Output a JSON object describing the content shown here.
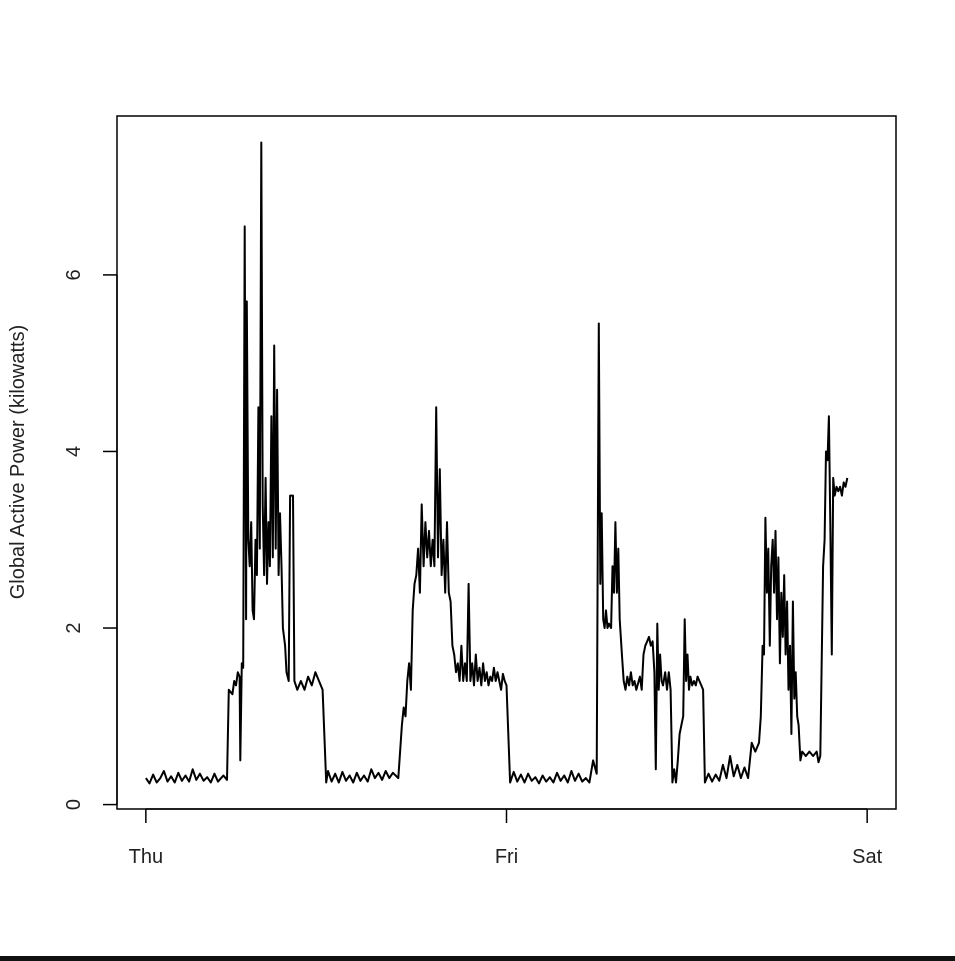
{
  "chart_data": {
    "type": "line",
    "title": "",
    "xlabel": "",
    "ylabel": "Global Active Power (kilowatts)",
    "x_ticks": [
      {
        "label": "Thu",
        "value": 0
      },
      {
        "label": "Fri",
        "value": 1
      },
      {
        "label": "Sat",
        "value": 2
      }
    ],
    "y_ticks": [
      {
        "label": "0",
        "value": 0
      },
      {
        "label": "2",
        "value": 2
      },
      {
        "label": "4",
        "value": 4
      },
      {
        "label": "6",
        "value": 6
      }
    ],
    "xlim": [
      -0.08,
      2.08
    ],
    "ylim": [
      -0.05,
      7.8
    ],
    "grid": false,
    "legend": "none",
    "line_color": "#000000",
    "series": [
      {
        "values": [
          [
            0.0,
            0.3
          ],
          [
            0.01,
            0.24
          ],
          [
            0.02,
            0.34
          ],
          [
            0.03,
            0.25
          ],
          [
            0.04,
            0.3
          ],
          [
            0.05,
            0.38
          ],
          [
            0.06,
            0.26
          ],
          [
            0.07,
            0.32
          ],
          [
            0.08,
            0.25
          ],
          [
            0.09,
            0.36
          ],
          [
            0.1,
            0.27
          ],
          [
            0.11,
            0.33
          ],
          [
            0.12,
            0.26
          ],
          [
            0.13,
            0.4
          ],
          [
            0.14,
            0.28
          ],
          [
            0.15,
            0.35
          ],
          [
            0.16,
            0.27
          ],
          [
            0.17,
            0.31
          ],
          [
            0.18,
            0.25
          ],
          [
            0.19,
            0.35
          ],
          [
            0.2,
            0.26
          ],
          [
            0.215,
            0.33
          ],
          [
            0.225,
            0.28
          ],
          [
            0.23,
            1.3
          ],
          [
            0.24,
            1.25
          ],
          [
            0.245,
            1.4
          ],
          [
            0.25,
            1.35
          ],
          [
            0.255,
            1.5
          ],
          [
            0.26,
            1.45
          ],
          [
            0.262,
            0.5
          ],
          [
            0.266,
            1.6
          ],
          [
            0.27,
            1.55
          ],
          [
            0.274,
            6.55
          ],
          [
            0.278,
            2.1
          ],
          [
            0.28,
            5.7
          ],
          [
            0.284,
            3.0
          ],
          [
            0.288,
            2.7
          ],
          [
            0.292,
            3.2
          ],
          [
            0.296,
            2.2
          ],
          [
            0.3,
            2.1
          ],
          [
            0.304,
            3.0
          ],
          [
            0.308,
            2.6
          ],
          [
            0.312,
            4.5
          ],
          [
            0.316,
            2.9
          ],
          [
            0.32,
            7.5
          ],
          [
            0.324,
            3.4
          ],
          [
            0.328,
            2.6
          ],
          [
            0.332,
            3.7
          ],
          [
            0.336,
            2.5
          ],
          [
            0.34,
            3.2
          ],
          [
            0.344,
            2.7
          ],
          [
            0.348,
            4.4
          ],
          [
            0.352,
            2.8
          ],
          [
            0.356,
            5.2
          ],
          [
            0.36,
            2.9
          ],
          [
            0.364,
            4.7
          ],
          [
            0.368,
            2.6
          ],
          [
            0.372,
            3.3
          ],
          [
            0.376,
            2.7
          ],
          [
            0.38,
            2.0
          ],
          [
            0.386,
            1.8
          ],
          [
            0.39,
            1.5
          ],
          [
            0.396,
            1.4
          ],
          [
            0.4,
            3.5
          ],
          [
            0.408,
            3.5
          ],
          [
            0.412,
            1.4
          ],
          [
            0.42,
            1.3
          ],
          [
            0.43,
            1.4
          ],
          [
            0.44,
            1.3
          ],
          [
            0.45,
            1.45
          ],
          [
            0.46,
            1.35
          ],
          [
            0.47,
            1.5
          ],
          [
            0.48,
            1.4
          ],
          [
            0.49,
            1.3
          ],
          [
            0.5,
            0.25
          ],
          [
            0.505,
            0.38
          ],
          [
            0.515,
            0.26
          ],
          [
            0.525,
            0.35
          ],
          [
            0.535,
            0.25
          ],
          [
            0.545,
            0.37
          ],
          [
            0.555,
            0.27
          ],
          [
            0.565,
            0.33
          ],
          [
            0.575,
            0.25
          ],
          [
            0.585,
            0.36
          ],
          [
            0.595,
            0.27
          ],
          [
            0.605,
            0.33
          ],
          [
            0.615,
            0.26
          ],
          [
            0.625,
            0.4
          ],
          [
            0.635,
            0.3
          ],
          [
            0.645,
            0.36
          ],
          [
            0.655,
            0.28
          ],
          [
            0.665,
            0.38
          ],
          [
            0.675,
            0.3
          ],
          [
            0.685,
            0.36
          ],
          [
            0.7,
            0.3
          ],
          [
            0.705,
            0.6
          ],
          [
            0.71,
            0.9
          ],
          [
            0.715,
            1.1
          ],
          [
            0.72,
            1.0
          ],
          [
            0.725,
            1.4
          ],
          [
            0.73,
            1.6
          ],
          [
            0.735,
            1.3
          ],
          [
            0.74,
            2.2
          ],
          [
            0.745,
            2.5
          ],
          [
            0.75,
            2.6
          ],
          [
            0.755,
            2.9
          ],
          [
            0.76,
            2.4
          ],
          [
            0.765,
            3.4
          ],
          [
            0.77,
            2.7
          ],
          [
            0.775,
            3.2
          ],
          [
            0.78,
            2.8
          ],
          [
            0.785,
            3.1
          ],
          [
            0.79,
            2.7
          ],
          [
            0.795,
            3.0
          ],
          [
            0.8,
            2.7
          ],
          [
            0.805,
            4.5
          ],
          [
            0.81,
            2.8
          ],
          [
            0.815,
            3.8
          ],
          [
            0.82,
            2.6
          ],
          [
            0.825,
            3.0
          ],
          [
            0.83,
            2.4
          ],
          [
            0.835,
            3.2
          ],
          [
            0.84,
            2.4
          ],
          [
            0.845,
            2.3
          ],
          [
            0.85,
            1.8
          ],
          [
            0.855,
            1.7
          ],
          [
            0.86,
            1.5
          ],
          [
            0.865,
            1.6
          ],
          [
            0.87,
            1.4
          ],
          [
            0.875,
            1.8
          ],
          [
            0.88,
            1.4
          ],
          [
            0.885,
            1.6
          ],
          [
            0.89,
            1.4
          ],
          [
            0.895,
            2.5
          ],
          [
            0.9,
            1.4
          ],
          [
            0.905,
            1.6
          ],
          [
            0.91,
            1.35
          ],
          [
            0.915,
            1.7
          ],
          [
            0.92,
            1.4
          ],
          [
            0.925,
            1.55
          ],
          [
            0.93,
            1.35
          ],
          [
            0.935,
            1.6
          ],
          [
            0.94,
            1.4
          ],
          [
            0.945,
            1.5
          ],
          [
            0.95,
            1.35
          ],
          [
            0.955,
            1.45
          ],
          [
            0.96,
            1.4
          ],
          [
            0.965,
            1.55
          ],
          [
            0.97,
            1.4
          ],
          [
            0.975,
            1.5
          ],
          [
            0.98,
            1.4
          ],
          [
            0.985,
            1.3
          ],
          [
            0.99,
            1.48
          ],
          [
            0.995,
            1.4
          ],
          [
            1.0,
            1.35
          ],
          [
            1.01,
            0.25
          ],
          [
            1.02,
            0.37
          ],
          [
            1.03,
            0.26
          ],
          [
            1.04,
            0.34
          ],
          [
            1.05,
            0.25
          ],
          [
            1.06,
            0.35
          ],
          [
            1.07,
            0.27
          ],
          [
            1.08,
            0.31
          ],
          [
            1.09,
            0.24
          ],
          [
            1.1,
            0.33
          ],
          [
            1.11,
            0.26
          ],
          [
            1.12,
            0.31
          ],
          [
            1.13,
            0.25
          ],
          [
            1.14,
            0.36
          ],
          [
            1.15,
            0.27
          ],
          [
            1.16,
            0.33
          ],
          [
            1.17,
            0.25
          ],
          [
            1.18,
            0.38
          ],
          [
            1.19,
            0.27
          ],
          [
            1.2,
            0.35
          ],
          [
            1.21,
            0.26
          ],
          [
            1.22,
            0.3
          ],
          [
            1.23,
            0.25
          ],
          [
            1.24,
            0.5
          ],
          [
            1.25,
            0.35
          ],
          [
            1.256,
            5.45
          ],
          [
            1.26,
            2.5
          ],
          [
            1.264,
            3.3
          ],
          [
            1.268,
            2.1
          ],
          [
            1.272,
            2.0
          ],
          [
            1.276,
            2.2
          ],
          [
            1.28,
            2.0
          ],
          [
            1.284,
            2.05
          ],
          [
            1.29,
            2.0
          ],
          [
            1.294,
            2.7
          ],
          [
            1.298,
            2.4
          ],
          [
            1.302,
            3.2
          ],
          [
            1.306,
            2.4
          ],
          [
            1.31,
            2.9
          ],
          [
            1.314,
            2.1
          ],
          [
            1.32,
            1.7
          ],
          [
            1.325,
            1.4
          ],
          [
            1.33,
            1.3
          ],
          [
            1.335,
            1.45
          ],
          [
            1.34,
            1.35
          ],
          [
            1.345,
            1.5
          ],
          [
            1.35,
            1.35
          ],
          [
            1.355,
            1.4
          ],
          [
            1.36,
            1.3
          ],
          [
            1.37,
            1.45
          ],
          [
            1.375,
            1.3
          ],
          [
            1.38,
            1.7
          ],
          [
            1.385,
            1.8
          ],
          [
            1.39,
            1.85
          ],
          [
            1.395,
            1.9
          ],
          [
            1.4,
            1.8
          ],
          [
            1.405,
            1.85
          ],
          [
            1.41,
            1.5
          ],
          [
            1.414,
            0.4
          ],
          [
            1.418,
            2.05
          ],
          [
            1.422,
            1.3
          ],
          [
            1.426,
            1.7
          ],
          [
            1.43,
            1.4
          ],
          [
            1.434,
            1.35
          ],
          [
            1.44,
            1.5
          ],
          [
            1.445,
            1.3
          ],
          [
            1.45,
            1.5
          ],
          [
            1.455,
            1.3
          ],
          [
            1.46,
            0.25
          ],
          [
            1.465,
            0.4
          ],
          [
            1.47,
            0.25
          ],
          [
            1.475,
            0.5
          ],
          [
            1.48,
            0.8
          ],
          [
            1.485,
            0.9
          ],
          [
            1.49,
            1.0
          ],
          [
            1.494,
            2.1
          ],
          [
            1.498,
            1.4
          ],
          [
            1.502,
            1.7
          ],
          [
            1.506,
            1.3
          ],
          [
            1.51,
            1.45
          ],
          [
            1.515,
            1.35
          ],
          [
            1.52,
            1.4
          ],
          [
            1.525,
            1.35
          ],
          [
            1.53,
            1.45
          ],
          [
            1.535,
            1.4
          ],
          [
            1.54,
            1.35
          ],
          [
            1.545,
            1.3
          ],
          [
            1.55,
            0.25
          ],
          [
            1.56,
            0.35
          ],
          [
            1.57,
            0.26
          ],
          [
            1.58,
            0.34
          ],
          [
            1.59,
            0.27
          ],
          [
            1.6,
            0.45
          ],
          [
            1.61,
            0.3
          ],
          [
            1.62,
            0.55
          ],
          [
            1.63,
            0.32
          ],
          [
            1.64,
            0.45
          ],
          [
            1.65,
            0.3
          ],
          [
            1.66,
            0.42
          ],
          [
            1.67,
            0.3
          ],
          [
            1.68,
            0.7
          ],
          [
            1.69,
            0.6
          ],
          [
            1.7,
            0.7
          ],
          [
            1.705,
            1.0
          ],
          [
            1.71,
            1.8
          ],
          [
            1.714,
            1.7
          ],
          [
            1.718,
            3.25
          ],
          [
            1.722,
            2.4
          ],
          [
            1.726,
            2.9
          ],
          [
            1.73,
            1.8
          ],
          [
            1.734,
            2.7
          ],
          [
            1.738,
            3.0
          ],
          [
            1.742,
            2.4
          ],
          [
            1.746,
            3.1
          ],
          [
            1.75,
            2.1
          ],
          [
            1.754,
            2.8
          ],
          [
            1.758,
            1.6
          ],
          [
            1.762,
            2.4
          ],
          [
            1.766,
            1.9
          ],
          [
            1.77,
            2.6
          ],
          [
            1.774,
            1.7
          ],
          [
            1.778,
            2.3
          ],
          [
            1.782,
            1.3
          ],
          [
            1.786,
            1.8
          ],
          [
            1.79,
            0.8
          ],
          [
            1.794,
            2.3
          ],
          [
            1.798,
            1.2
          ],
          [
            1.802,
            1.5
          ],
          [
            1.806,
            1.0
          ],
          [
            1.81,
            0.9
          ],
          [
            1.815,
            0.5
          ],
          [
            1.82,
            0.6
          ],
          [
            1.83,
            0.55
          ],
          [
            1.84,
            0.6
          ],
          [
            1.85,
            0.55
          ],
          [
            1.86,
            0.6
          ],
          [
            1.865,
            0.48
          ],
          [
            1.87,
            0.55
          ],
          [
            1.878,
            2.7
          ],
          [
            1.882,
            3.0
          ],
          [
            1.886,
            4.0
          ],
          [
            1.89,
            3.9
          ],
          [
            1.894,
            4.4
          ],
          [
            1.898,
            3.1
          ],
          [
            1.902,
            1.7
          ],
          [
            1.906,
            3.7
          ],
          [
            1.91,
            3.5
          ],
          [
            1.915,
            3.6
          ],
          [
            1.92,
            3.55
          ],
          [
            1.925,
            3.6
          ],
          [
            1.93,
            3.5
          ],
          [
            1.935,
            3.65
          ],
          [
            1.94,
            3.6
          ],
          [
            1.945,
            3.7
          ]
        ]
      }
    ]
  }
}
